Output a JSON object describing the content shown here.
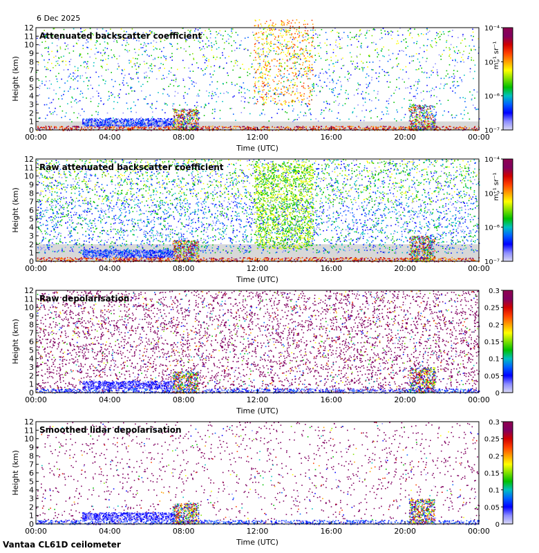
{
  "header": {
    "date": "6 Dec 2025"
  },
  "footer": {
    "station": "Vantaa CL61D ceilometer"
  },
  "chart_data": [
    {
      "type": "heatmap",
      "title": "Attenuated backscatter coefficient",
      "xlabel": "Time (UTC)",
      "ylabel": "Height (km)",
      "x_ticks": [
        "00:00",
        "04:00",
        "08:00",
        "12:00",
        "16:00",
        "20:00",
        "00:00"
      ],
      "y_ticks": [
        "0",
        "1",
        "2",
        "3",
        "4",
        "5",
        "6",
        "7",
        "8",
        "9",
        "10",
        "11",
        "12"
      ],
      "xlim_hours": [
        0,
        24
      ],
      "ylim_km": [
        0,
        12
      ],
      "colorbar": {
        "scale": "log",
        "unit": "m⁻¹ sr⁻¹",
        "ticks": [
          "10⁻⁷",
          "10⁻⁶",
          "10⁻⁵",
          "10⁻⁴"
        ],
        "range": [
          1e-07,
          0.0001
        ]
      },
      "density": 0.35,
      "noise_background": false
    },
    {
      "type": "heatmap",
      "title": "Raw attenuated backscatter coefficient",
      "xlabel": "Time (UTC)",
      "ylabel": "Height (km)",
      "x_ticks": [
        "00:00",
        "04:00",
        "08:00",
        "12:00",
        "16:00",
        "20:00",
        "00:00"
      ],
      "y_ticks": [
        "0",
        "1",
        "2",
        "3",
        "4",
        "5",
        "6",
        "7",
        "8",
        "9",
        "10",
        "11",
        "12"
      ],
      "xlim_hours": [
        0,
        24
      ],
      "ylim_km": [
        0,
        12
      ],
      "colorbar": {
        "scale": "log",
        "unit": "m⁻¹ sr⁻¹",
        "ticks": [
          "10⁻⁷",
          "10⁻⁶",
          "10⁻⁵",
          "10⁻⁴"
        ],
        "range": [
          1e-07,
          0.0001
        ]
      },
      "density": 1.0,
      "noise_background": true
    },
    {
      "type": "heatmap",
      "title": "Raw depolarisation",
      "xlabel": "Time (UTC)",
      "ylabel": "Height (km)",
      "x_ticks": [
        "00:00",
        "04:00",
        "08:00",
        "12:00",
        "16:00",
        "20:00",
        "00:00"
      ],
      "y_ticks": [
        "0",
        "1",
        "2",
        "3",
        "4",
        "5",
        "6",
        "7",
        "8",
        "9",
        "10",
        "11",
        "12"
      ],
      "xlim_hours": [
        0,
        24
      ],
      "ylim_km": [
        0,
        12
      ],
      "colorbar": {
        "scale": "linear",
        "unit": "",
        "ticks": [
          "0",
          "0.05",
          "0.1",
          "0.15",
          "0.2",
          "0.25",
          "0.3"
        ],
        "range": [
          0,
          0.3
        ]
      },
      "density": 1.0,
      "noise_background": false
    },
    {
      "type": "heatmap",
      "title": "Smoothed lidar depolarisation",
      "xlabel": "Time (UTC)",
      "ylabel": "Height (km)",
      "x_ticks": [
        "00:00",
        "04:00",
        "08:00",
        "12:00",
        "16:00",
        "20:00",
        "00:00"
      ],
      "y_ticks": [
        "0",
        "1",
        "2",
        "3",
        "4",
        "5",
        "6",
        "7",
        "8",
        "9",
        "10",
        "11",
        "12"
      ],
      "xlim_hours": [
        0,
        24
      ],
      "ylim_km": [
        0,
        12
      ],
      "colorbar": {
        "scale": "linear",
        "unit": "",
        "ticks": [
          "0",
          "0.05",
          "0.1",
          "0.15",
          "0.2",
          "0.25",
          "0.3"
        ],
        "range": [
          0,
          0.3
        ]
      },
      "density": 0.3,
      "noise_background": false
    }
  ],
  "colors": {
    "colormap": [
      "#d9d9f5",
      "#8c8cff",
      "#0000ff",
      "#0060ff",
      "#00c0c0",
      "#00c000",
      "#80e000",
      "#ffff00",
      "#ffa000",
      "#ff4000",
      "#d00000",
      "#800060",
      "#900050"
    ]
  }
}
